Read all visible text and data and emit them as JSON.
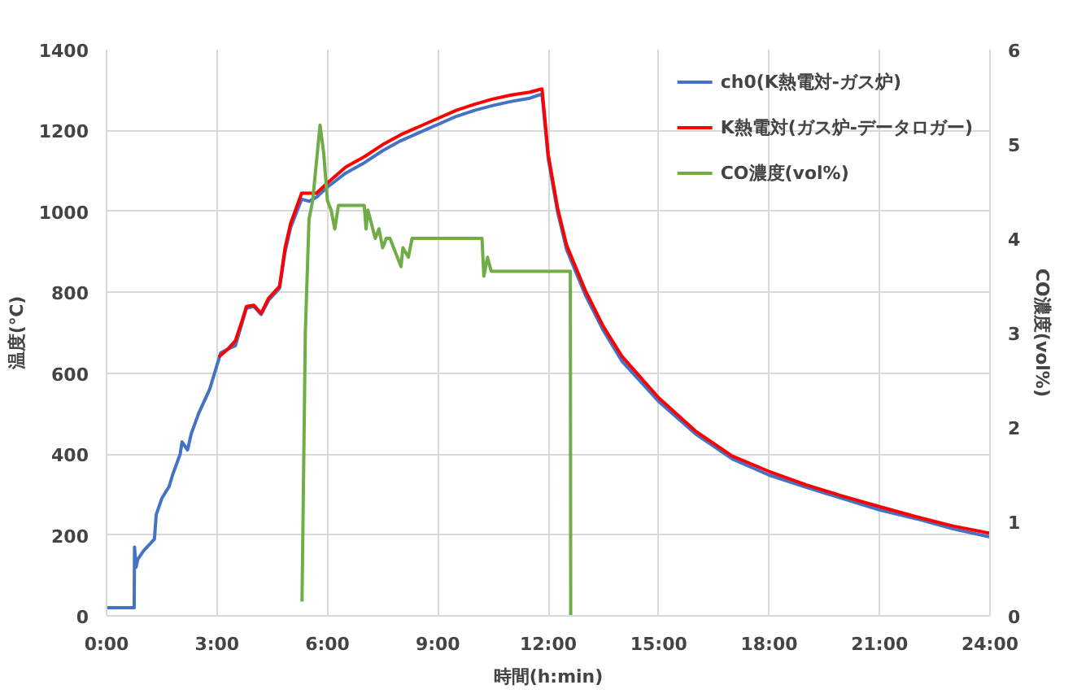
{
  "chart_data": {
    "type": "line",
    "xlabel": "時間(h:min)",
    "ylabel": "温度(℃)",
    "y2label": "CO濃度(vol%)",
    "xlim": [
      0,
      24
    ],
    "xticks": [
      {
        "value": 0,
        "label": "0:00"
      },
      {
        "value": 3,
        "label": "3:00"
      },
      {
        "value": 6,
        "label": "6:00"
      },
      {
        "value": 9,
        "label": "9:00"
      },
      {
        "value": 12,
        "label": "12:00"
      },
      {
        "value": 15,
        "label": "15:00"
      },
      {
        "value": 18,
        "label": "18:00"
      },
      {
        "value": 21,
        "label": "21:00"
      },
      {
        "value": 24,
        "label": "24:00"
      }
    ],
    "ylim": [
      0,
      1400
    ],
    "yticks": [
      0,
      200,
      400,
      600,
      800,
      1000,
      1200,
      1400
    ],
    "y2lim": [
      0,
      6
    ],
    "y2ticks": [
      0,
      1,
      2,
      3,
      4,
      5,
      6
    ],
    "grid": true,
    "legend": "top right",
    "marker": "none",
    "line_style": "solid",
    "series": [
      {
        "name": "ch0(K熱電対-ガス炉)",
        "color": "#4472c4",
        "x": [
          0,
          0.75,
          0.76,
          0.8,
          0.85,
          1.0,
          1.3,
          1.35,
          1.5,
          1.7,
          1.8,
          2.0,
          2.05,
          2.2,
          2.3,
          2.5,
          2.8,
          3.0,
          3.1,
          3.3,
          3.5,
          3.7,
          3.8,
          4.0,
          4.2,
          4.4,
          4.7,
          4.85,
          5.0,
          5.3,
          5.5,
          5.7,
          6.0,
          6.5,
          7,
          7.5,
          8,
          8.5,
          9,
          9.5,
          10,
          10.5,
          11,
          11.5,
          11.83,
          12.0,
          12.25,
          12.5,
          13,
          13.5,
          14,
          15,
          16,
          17,
          18,
          19,
          20,
          21,
          22,
          23,
          24
        ],
        "values": [
          20,
          20,
          170,
          120,
          140,
          160,
          190,
          250,
          290,
          320,
          350,
          400,
          430,
          410,
          450,
          500,
          560,
          620,
          650,
          660,
          668,
          730,
          760,
          765,
          745,
          780,
          810,
          900,
          960,
          1030,
          1025,
          1035,
          1060,
          1095,
          1120,
          1150,
          1175,
          1195,
          1215,
          1235,
          1250,
          1262,
          1272,
          1280,
          1290,
          1130,
          1000,
          905,
          795,
          705,
          630,
          530,
          450,
          388,
          348,
          318,
          290,
          262,
          240,
          215,
          195
        ]
      },
      {
        "name": "K熱電対(ガス炉-データロガー)",
        "color": "#ff0000",
        "x": [
          3.05,
          3.3,
          3.5,
          3.7,
          3.8,
          4.0,
          4.2,
          4.4,
          4.7,
          4.85,
          5.0,
          5.3,
          5.5,
          5.7,
          6.0,
          6.5,
          7,
          7.5,
          8,
          8.5,
          9,
          9.5,
          10,
          10.5,
          11,
          11.5,
          11.83,
          12.0,
          12.25,
          12.5,
          13,
          13.5,
          14,
          15,
          16,
          17,
          18,
          19,
          20,
          21,
          22,
          23,
          24
        ],
        "values": [
          640,
          660,
          680,
          735,
          765,
          768,
          748,
          785,
          815,
          910,
          970,
          1045,
          1045,
          1045,
          1070,
          1110,
          1135,
          1165,
          1190,
          1210,
          1230,
          1250,
          1265,
          1278,
          1288,
          1295,
          1303,
          1140,
          1010,
          916,
          806,
          715,
          642,
          539,
          457,
          395,
          357,
          324,
          296,
          270,
          245,
          222,
          204
        ]
      },
      {
        "name": "CO濃度(vol%)",
        "color": "#70ad47",
        "axis": "y2",
        "x": [
          5.31,
          5.4,
          5.5,
          5.6,
          5.8,
          5.9,
          6.0,
          6.1,
          6.2,
          6.3,
          7.0,
          7.05,
          7.1,
          7.3,
          7.4,
          7.5,
          7.6,
          7.7,
          8.0,
          8.05,
          8.2,
          8.3,
          10.2,
          10.25,
          10.35,
          10.45,
          12.6,
          12.61
        ],
        "values": [
          0.15,
          3.0,
          4.2,
          4.4,
          5.2,
          4.9,
          4.4,
          4.3,
          4.1,
          4.35,
          4.35,
          4.1,
          4.3,
          4.0,
          4.1,
          3.9,
          4.0,
          4.0,
          3.7,
          3.9,
          3.8,
          4.0,
          4.0,
          3.6,
          3.8,
          3.65,
          3.65,
          0
        ]
      }
    ]
  }
}
